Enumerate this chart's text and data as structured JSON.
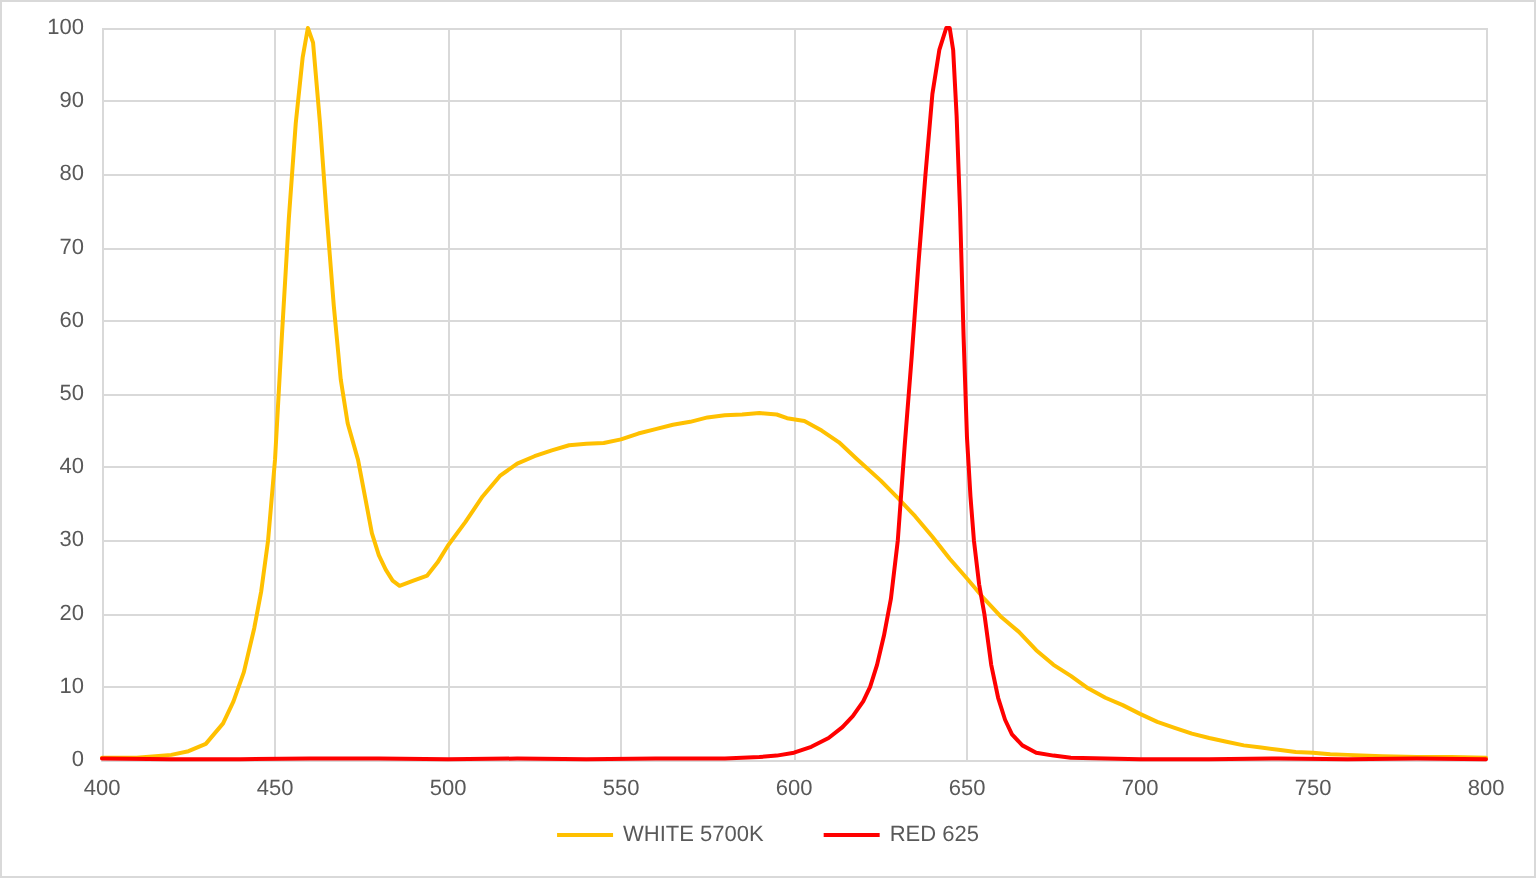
{
  "chart_data": {
    "type": "line",
    "xlim": [
      400,
      800
    ],
    "xticks": [
      400,
      450,
      500,
      550,
      600,
      650,
      700,
      750,
      800
    ],
    "ylim": [
      0,
      100
    ],
    "yticks": [
      0,
      10,
      20,
      30,
      40,
      50,
      60,
      70,
      80,
      90,
      100
    ],
    "grid": true,
    "legend": "bottom",
    "marker": "none",
    "line_style": "solid",
    "series": [
      {
        "name": "WHITE 5700K",
        "color": "#ffc000",
        "x": [
          400,
          410,
          420,
          425,
          430,
          435,
          438,
          441,
          444,
          446,
          448,
          450,
          452,
          454,
          456,
          458,
          459.5,
          461,
          463,
          465,
          467,
          469,
          471,
          474,
          476,
          478,
          480,
          482,
          484,
          486,
          490,
          494,
          497,
          500,
          505,
          510,
          515,
          520,
          525,
          530,
          535,
          540,
          545,
          550,
          555,
          560,
          565,
          570,
          575,
          580,
          585,
          590,
          595,
          598,
          603,
          608,
          613,
          618,
          625,
          630,
          635,
          640,
          645,
          650,
          655,
          660,
          665,
          670,
          675,
          680,
          685,
          690,
          695,
          700,
          705,
          710,
          715,
          720,
          725,
          730,
          735,
          740,
          745,
          750,
          755,
          760,
          770,
          780,
          790,
          800
        ],
        "values": [
          0.3,
          0.3,
          0.7,
          1.2,
          2.2,
          5,
          8,
          12,
          18,
          23,
          30,
          41,
          58,
          74,
          87,
          96,
          100,
          98,
          87,
          74,
          62,
          52,
          46,
          41,
          36,
          31,
          28,
          26,
          24.5,
          23.8,
          24.5,
          25.2,
          27,
          29.3,
          32.5,
          36,
          38.8,
          40.5,
          41.5,
          42.3,
          43,
          43.2,
          43.3,
          43.8,
          44.6,
          45.2,
          45.8,
          46.2,
          46.8,
          47.1,
          47.2,
          47.4,
          47.2,
          46.7,
          46.3,
          45,
          43.4,
          41.2,
          38.2,
          35.8,
          33.3,
          30.5,
          27.5,
          24.8,
          22,
          19.5,
          17.5,
          15,
          13,
          11.5,
          9.8,
          8.5,
          7.5,
          6.3,
          5.2,
          4.4,
          3.6,
          3,
          2.5,
          2,
          1.7,
          1.4,
          1.1,
          1,
          0.8,
          0.7,
          0.5,
          0.4,
          0.4,
          0.3
        ]
      },
      {
        "name": "RED 625",
        "color": "#ff0000",
        "x": [
          400,
          420,
          440,
          460,
          480,
          500,
          520,
          540,
          560,
          580,
          590,
          595,
          600,
          605,
          610,
          614,
          617,
          620,
          622,
          624,
          626,
          628,
          630,
          632,
          634,
          636,
          638,
          640,
          642,
          644,
          645,
          646,
          647,
          648,
          649,
          650,
          651,
          652,
          653.5,
          655,
          657,
          659,
          661,
          663,
          666,
          670,
          675,
          680,
          690,
          700,
          720,
          740,
          760,
          780,
          800
        ],
        "values": [
          0.2,
          0.1,
          0.1,
          0.2,
          0.2,
          0.1,
          0.2,
          0.1,
          0.2,
          0.2,
          0.4,
          0.6,
          1,
          1.8,
          3,
          4.5,
          6,
          8,
          10,
          13,
          17,
          22,
          30,
          43,
          55,
          68,
          80,
          91,
          97,
          100,
          100,
          97,
          88,
          75,
          58,
          44,
          36,
          30,
          24,
          20,
          13,
          8.5,
          5.5,
          3.5,
          2,
          1,
          0.6,
          0.3,
          0.2,
          0.1,
          0.1,
          0.2,
          0.1,
          0.2,
          0.1
        ]
      }
    ]
  }
}
